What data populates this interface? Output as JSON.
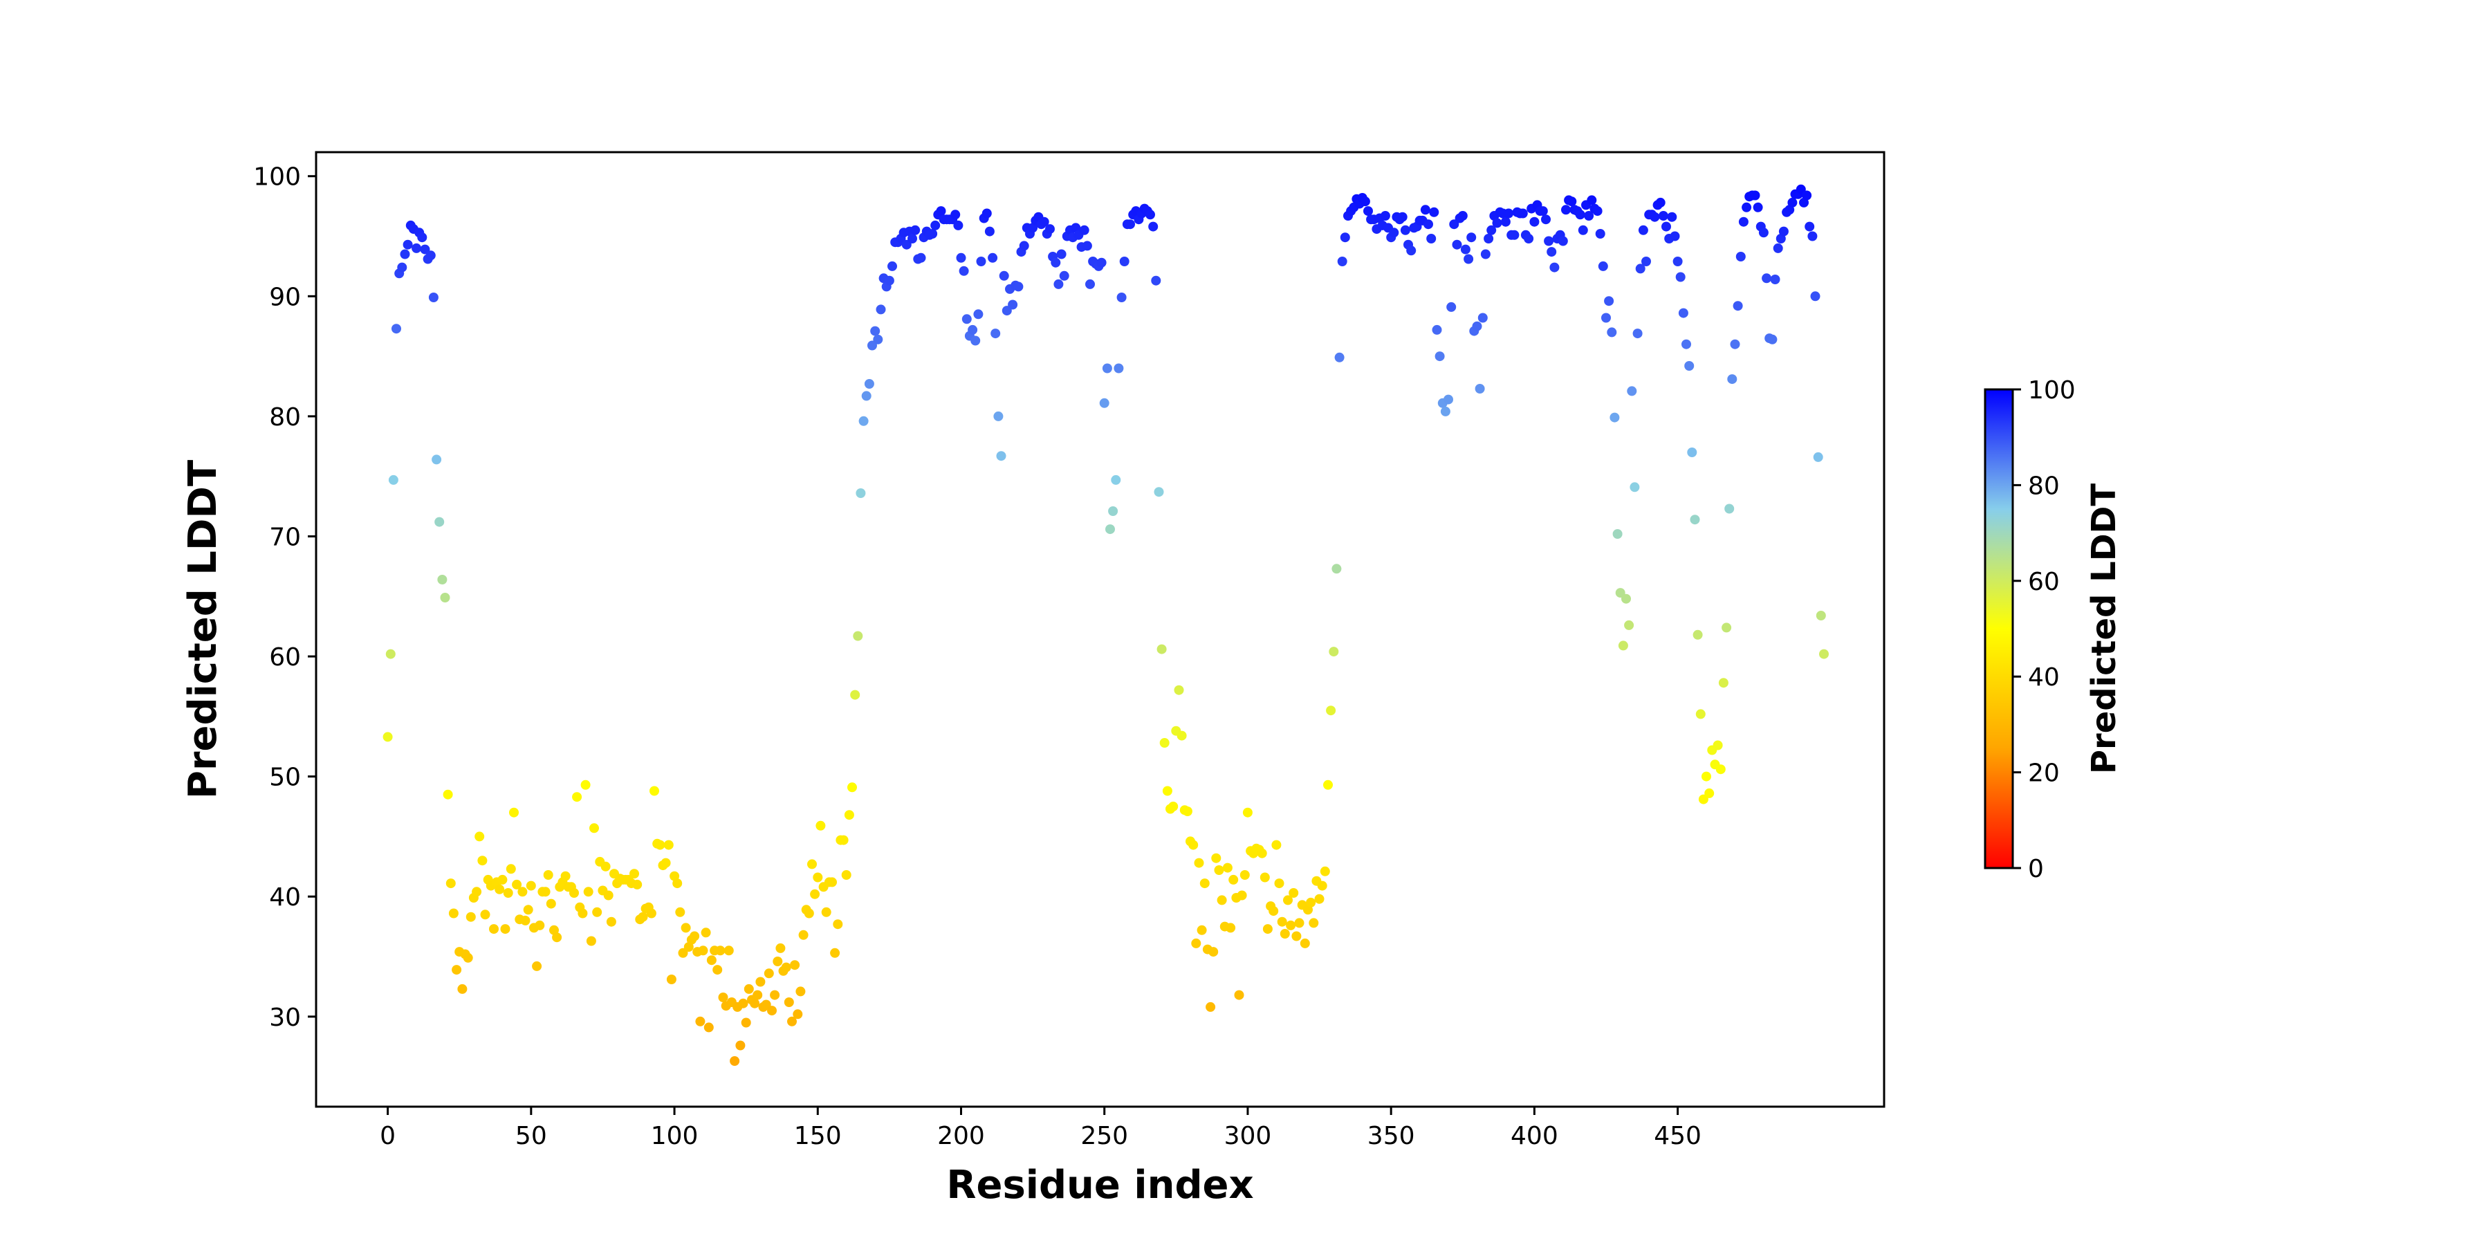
{
  "chart_data": {
    "type": "scatter",
    "title": "",
    "xlabel": "Residue index",
    "ylabel": "Predicted LDDT",
    "xlim": [
      -25,
      522
    ],
    "ylim": [
      22.5,
      102
    ],
    "xticks": [
      0,
      50,
      100,
      150,
      200,
      250,
      300,
      350,
      400,
      450
    ],
    "yticks": [
      30,
      40,
      50,
      60,
      70,
      80,
      90,
      100
    ],
    "grid": false,
    "legend": "none",
    "colorbar": {
      "label": "Predicted LDDT",
      "range": [
        0,
        100
      ],
      "ticks": [
        0,
        20,
        40,
        60,
        80,
        100
      ],
      "colors": [
        "#ff0000",
        "#ffa500",
        "#ffff00",
        "#87ceeb",
        "#0000ff"
      ]
    },
    "series": [
      {
        "y": [
          53.3,
          60.2,
          74.7,
          87.3,
          91.9,
          92.4,
          93.5,
          94.3,
          95.9,
          95.6,
          94.0,
          95.3,
          94.9,
          93.9,
          93.1,
          93.4,
          89.9,
          76.4,
          71.2,
          66.4,
          64.9,
          48.5,
          41.1,
          38.6,
          33.9,
          35.4,
          32.3,
          35.2,
          34.9,
          38.3,
          39.9,
          40.4,
          45.0,
          43.0,
          38.5,
          41.4,
          40.9,
          37.3,
          41.2,
          40.6,
          41.4,
          37.3,
          40.3,
          42.3,
          47.0,
          41.0,
          38.1,
          40.4,
          38.0,
          38.9,
          40.9,
          37.4,
          34.2,
          37.6,
          40.4,
          40.4,
          41.8,
          39.4,
          37.2,
          36.6,
          40.8,
          41.2,
          41.7,
          40.8,
          40.8,
          40.3,
          48.3,
          39.1,
          38.6,
          49.3,
          40.4,
          36.3,
          45.7,
          38.7,
          42.9,
          40.5,
          42.5,
          40.1,
          37.9,
          41.9,
          41.1,
          41.5,
          41.4,
          41.4,
          41.4,
          41.1,
          41.9,
          41.0,
          38.1,
          38.3,
          39.0,
          39.1,
          38.6,
          48.8,
          44.4,
          44.3,
          42.6,
          42.8,
          44.3,
          33.1,
          41.7,
          41.1,
          38.7,
          35.3,
          37.4,
          35.8,
          36.4,
          36.7,
          35.4,
          29.6,
          35.5,
          37.0,
          29.1,
          34.7,
          35.5,
          33.9,
          35.5,
          31.6,
          30.9,
          35.5,
          31.2,
          26.3,
          30.8,
          27.6,
          31.1,
          29.5,
          32.3,
          31.4,
          31.1,
          31.8,
          32.9,
          30.8,
          31.0,
          33.6,
          30.5,
          31.8,
          34.6,
          35.7,
          33.8,
          34.1,
          31.2,
          29.6,
          34.3,
          30.2,
          32.1,
          36.8,
          38.9,
          38.6,
          42.7,
          40.2,
          41.6,
          45.9,
          40.8,
          38.7,
          41.2,
          41.2,
          35.3,
          37.7,
          44.7,
          44.7,
          41.8,
          46.8,
          49.1,
          56.8,
          61.7,
          73.6,
          79.6,
          81.7,
          82.7,
          85.9,
          87.1,
          86.4,
          88.9,
          91.5,
          90.8,
          91.3,
          92.5,
          94.5,
          94.5,
          94.8,
          95.3,
          94.3,
          95.4,
          94.8,
          95.5,
          93.1,
          93.2,
          94.9,
          95.4,
          95.1,
          95.2,
          95.9,
          96.8,
          97.1,
          96.4,
          96.4,
          96.4,
          96.4,
          96.8,
          95.9,
          93.2,
          92.1,
          88.1,
          86.7,
          87.2,
          86.3,
          88.5,
          92.9,
          96.5,
          96.9,
          95.4,
          93.2,
          86.9,
          80.0,
          76.7,
          91.7,
          88.8,
          90.6,
          89.3,
          90.9,
          90.8,
          93.7,
          94.2,
          95.7,
          95.2,
          95.7,
          96.3,
          96.6,
          96.0,
          96.2,
          95.2,
          95.6,
          93.3,
          92.8,
          91.0,
          93.5,
          91.7,
          95.0,
          95.5,
          94.9,
          95.7,
          95.1,
          94.1,
          95.5,
          94.2,
          91.0,
          92.9,
          92.7,
          92.5,
          92.8,
          81.1,
          84.0,
          70.6,
          72.1,
          74.7,
          84.0,
          89.9,
          92.9,
          96.0,
          96.0,
          96.8,
          97.1,
          96.4,
          96.9,
          97.3,
          97.1,
          96.8,
          95.8,
          91.3,
          73.7,
          60.6,
          52.8,
          48.8,
          47.3,
          47.5,
          53.8,
          57.2,
          53.4,
          47.2,
          47.1,
          44.6,
          44.3,
          36.1,
          42.8,
          37.2,
          41.1,
          35.6,
          30.8,
          35.4,
          43.2,
          42.2,
          39.7,
          37.5,
          42.4,
          37.4,
          41.4,
          39.9,
          31.8,
          40.1,
          41.8,
          47.0,
          43.8,
          43.6,
          44.0,
          43.9,
          43.6,
          41.6,
          37.3,
          39.2,
          38.8,
          44.3,
          41.1,
          37.9,
          36.9,
          39.7,
          37.6,
          40.3,
          36.7,
          37.8,
          39.3,
          36.1,
          38.9,
          39.5,
          37.8,
          41.3,
          39.8,
          40.9,
          42.1,
          49.3,
          55.5,
          60.4,
          67.3,
          84.9,
          92.9,
          94.9,
          96.7,
          97.1,
          97.4,
          98.1,
          97.7,
          98.2,
          97.9,
          97.1,
          96.4,
          96.4,
          95.6,
          96.5,
          95.9,
          96.7,
          95.7,
          94.9,
          95.3,
          96.6,
          96.4,
          96.6,
          95.5,
          94.3,
          93.8,
          95.7,
          95.8,
          96.3,
          96.3,
          97.2,
          96.0,
          94.8,
          97.0,
          87.2,
          85.0,
          81.1,
          80.4,
          81.4,
          89.1,
          96.0,
          94.3,
          96.5,
          96.7,
          93.9,
          93.1,
          94.9,
          87.1,
          87.5,
          82.3,
          88.2,
          93.5,
          94.8,
          95.5,
          96.7,
          96.1,
          97.0,
          96.9,
          96.2,
          96.9,
          95.1,
          95.1,
          97.0,
          96.9,
          96.9,
          95.1,
          94.8,
          97.3,
          96.2,
          97.6,
          97.1,
          97.1,
          96.4,
          94.6,
          93.7,
          92.4,
          94.8,
          95.1,
          94.6,
          97.2,
          98.0,
          97.9,
          97.2,
          97.1,
          96.8,
          95.5,
          97.6,
          96.7,
          98.0,
          97.3,
          97.1,
          95.2,
          92.5,
          88.2,
          89.6,
          87.0,
          79.9,
          70.2,
          65.3,
          60.9,
          64.8,
          62.6,
          82.1,
          74.1,
          86.9,
          92.3,
          95.5,
          92.9,
          96.8,
          96.8,
          96.6,
          97.6,
          97.8,
          96.7,
          95.8,
          94.8,
          96.6,
          95.0,
          92.9,
          91.6,
          88.6,
          86.0,
          84.2,
          77.0,
          71.4,
          61.8,
          55.2,
          48.1,
          50.0,
          48.6,
          52.2,
          51.0,
          52.6,
          50.6,
          57.8,
          62.4,
          72.3,
          83.1,
          86.0,
          89.2,
          93.3,
          96.2,
          97.4,
          98.3,
          98.4,
          98.4,
          97.4,
          95.8,
          95.3,
          91.5,
          86.5,
          86.4,
          91.4,
          94.0,
          94.8,
          95.4,
          97.0,
          97.2,
          97.8,
          98.5,
          98.5,
          98.9,
          97.8,
          98.4,
          95.8,
          95.0,
          90.0,
          76.6,
          63.4,
          60.2
        ]
      }
    ]
  }
}
